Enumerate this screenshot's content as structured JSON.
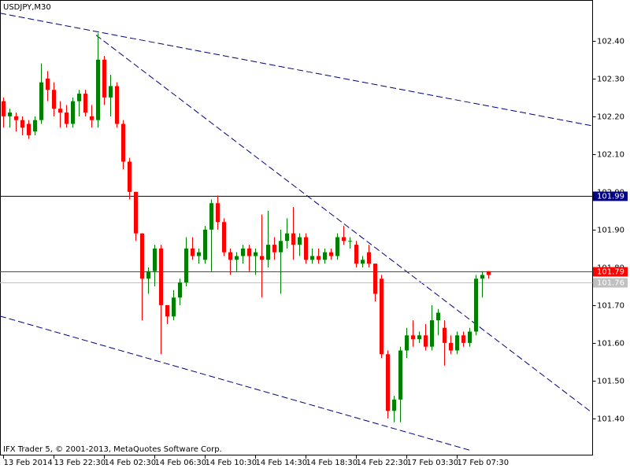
{
  "chart_data": {
    "type": "candlestick",
    "title": "USDJPY,M30",
    "footer": "IFX Trader 5, © 2001-2013, MetaQuotes Software Corp.",
    "categories": [
      "13 Feb 2014",
      null,
      null,
      null,
      null,
      null,
      null,
      null,
      "13 Feb 22:30",
      null,
      null,
      null,
      null,
      null,
      null,
      null,
      "14 Feb 02:30",
      null,
      null,
      null,
      null,
      null,
      null,
      null,
      "14 Feb 06:30",
      null,
      null,
      null,
      null,
      null,
      null,
      null,
      "14 Feb 10:30",
      null,
      null,
      null,
      null,
      null,
      null,
      null,
      "14 Feb 14:30",
      null,
      null,
      null,
      null,
      null,
      null,
      null,
      "14 Feb 18:30",
      null,
      null,
      null,
      null,
      null,
      null,
      null,
      "14 Feb 22:30",
      null,
      null,
      null,
      null,
      null,
      null,
      null,
      "17 Feb 03:30",
      null,
      null,
      null,
      null,
      null,
      null,
      null,
      "17 Feb 07:30",
      null,
      null,
      null,
      null,
      null
    ],
    "open": [
      102.24,
      102.2,
      102.2,
      102.19,
      102.18,
      102.16,
      102.19,
      102.3,
      102.27,
      102.22,
      102.21,
      102.18,
      102.24,
      102.26,
      102.2,
      102.19,
      102.35,
      102.25,
      102.28,
      102.18,
      102.08,
      102.0,
      101.89,
      101.77,
      101.79,
      101.85,
      101.7,
      101.67,
      101.72,
      101.76,
      101.85,
      101.83,
      101.82,
      101.9,
      101.97,
      101.92,
      101.84,
      101.82,
      101.83,
      101.85,
      101.83,
      101.83,
      101.82,
      101.86,
      101.84,
      101.87,
      101.89,
      101.86,
      101.88,
      101.82,
      101.83,
      101.82,
      101.84,
      101.83,
      101.88,
      101.87,
      101.86,
      101.81,
      101.84,
      101.81,
      101.77,
      101.57,
      101.42,
      101.45,
      101.58,
      101.62,
      101.61,
      101.62,
      101.59,
      101.66,
      101.64,
      101.6,
      101.58,
      101.62,
      101.6,
      101.63,
      101.77,
      101.79
    ],
    "high": [
      102.25,
      102.22,
      102.21,
      102.2,
      102.19,
      102.2,
      102.34,
      102.32,
      102.29,
      102.24,
      102.23,
      102.25,
      102.27,
      102.27,
      102.23,
      102.42,
      102.36,
      102.31,
      102.29,
      102.19,
      102.09,
      102.0,
      101.89,
      101.8,
      101.86,
      101.86,
      101.7,
      101.74,
      101.77,
      101.88,
      101.88,
      101.85,
      101.91,
      101.98,
      101.99,
      101.93,
      101.85,
      101.84,
      101.86,
      101.86,
      101.85,
      101.94,
      101.95,
      101.88,
      101.9,
      101.93,
      101.96,
      101.89,
      101.89,
      101.85,
      101.85,
      101.85,
      101.85,
      101.89,
      101.91,
      101.88,
      101.87,
      101.83,
      101.86,
      101.81,
      101.78,
      101.58,
      101.46,
      101.59,
      101.64,
      101.66,
      101.63,
      101.65,
      101.7,
      101.69,
      101.66,
      101.62,
      101.63,
      101.63,
      101.64,
      101.78,
      101.79,
      101.79
    ],
    "low": [
      102.17,
      102.17,
      102.16,
      102.15,
      102.14,
      102.15,
      102.18,
      102.24,
      102.2,
      102.17,
      102.17,
      102.17,
      102.2,
      102.2,
      102.17,
      102.17,
      102.23,
      102.2,
      102.17,
      102.06,
      101.98,
      101.87,
      101.66,
      101.73,
      101.75,
      101.57,
      101.65,
      101.66,
      101.7,
      101.75,
      101.82,
      101.81,
      101.81,
      101.79,
      101.9,
      101.83,
      101.78,
      101.79,
      101.81,
      101.79,
      101.78,
      101.72,
      101.8,
      101.82,
      101.73,
      101.85,
      101.82,
      101.83,
      101.81,
      101.81,
      101.81,
      101.81,
      101.82,
      101.82,
      101.86,
      101.85,
      101.8,
      101.8,
      101.8,
      101.71,
      101.56,
      101.4,
      101.39,
      101.39,
      101.56,
      101.59,
      101.6,
      101.58,
      101.58,
      101.62,
      101.54,
      101.57,
      101.57,
      101.59,
      101.59,
      101.62,
      101.72,
      101.77
    ],
    "close": [
      102.2,
      102.21,
      102.19,
      102.17,
      102.15,
      102.19,
      102.29,
      102.27,
      102.22,
      102.21,
      102.18,
      102.24,
      102.26,
      102.21,
      102.19,
      102.35,
      102.25,
      102.28,
      102.18,
      102.08,
      102.0,
      101.89,
      101.77,
      101.79,
      101.85,
      101.7,
      101.67,
      101.72,
      101.76,
      101.85,
      101.83,
      101.84,
      101.9,
      101.97,
      101.92,
      101.84,
      101.82,
      101.83,
      101.85,
      101.83,
      101.84,
      101.82,
      101.86,
      101.84,
      101.87,
      101.89,
      101.86,
      101.88,
      101.82,
      101.83,
      101.82,
      101.84,
      101.83,
      101.88,
      101.87,
      101.87,
      101.81,
      101.82,
      101.81,
      101.73,
      101.57,
      101.42,
      101.45,
      101.58,
      101.62,
      101.61,
      101.62,
      101.59,
      101.66,
      101.68,
      101.6,
      101.58,
      101.62,
      101.6,
      101.63,
      101.77,
      101.78,
      101.78
    ],
    "up_color": "#008000",
    "down_color": "#ff0000",
    "ylim": [
      101.304,
      102.508
    ],
    "yticks": [
      {
        "value": 101.4,
        "label": "101.40"
      },
      {
        "value": 101.5,
        "label": "101.50"
      },
      {
        "value": 101.6,
        "label": "101.60"
      },
      {
        "value": 101.7,
        "label": "101.70"
      },
      {
        "value": 101.8,
        "label": "101.80"
      },
      {
        "value": 101.9,
        "label": "101.90"
      },
      {
        "value": 102.0,
        "label": "102.00"
      },
      {
        "value": 102.1,
        "label": "102.10"
      },
      {
        "value": 102.2,
        "label": "102.20"
      },
      {
        "value": 102.3,
        "label": "102.30"
      },
      {
        "value": 102.4,
        "label": "102.40"
      }
    ],
    "levels": [
      {
        "value": 101.99,
        "color": "#000080"
      },
      {
        "value": 101.79,
        "color": "#ff0000"
      },
      {
        "value": 101.76,
        "color": "#c0c0c0"
      }
    ],
    "trendlines": [
      {
        "start": [
          -0.5,
          102.473
        ],
        "end": [
          93.5,
          102.175
        ],
        "color": "#000080"
      },
      {
        "start": [
          14.75,
          102.415
        ],
        "end": [
          93.5,
          101.415
        ],
        "color": "#000080"
      },
      {
        "start": [
          -0.5,
          101.671
        ],
        "end": [
          74.25,
          101.315
        ],
        "color": "#000080"
      }
    ]
  }
}
